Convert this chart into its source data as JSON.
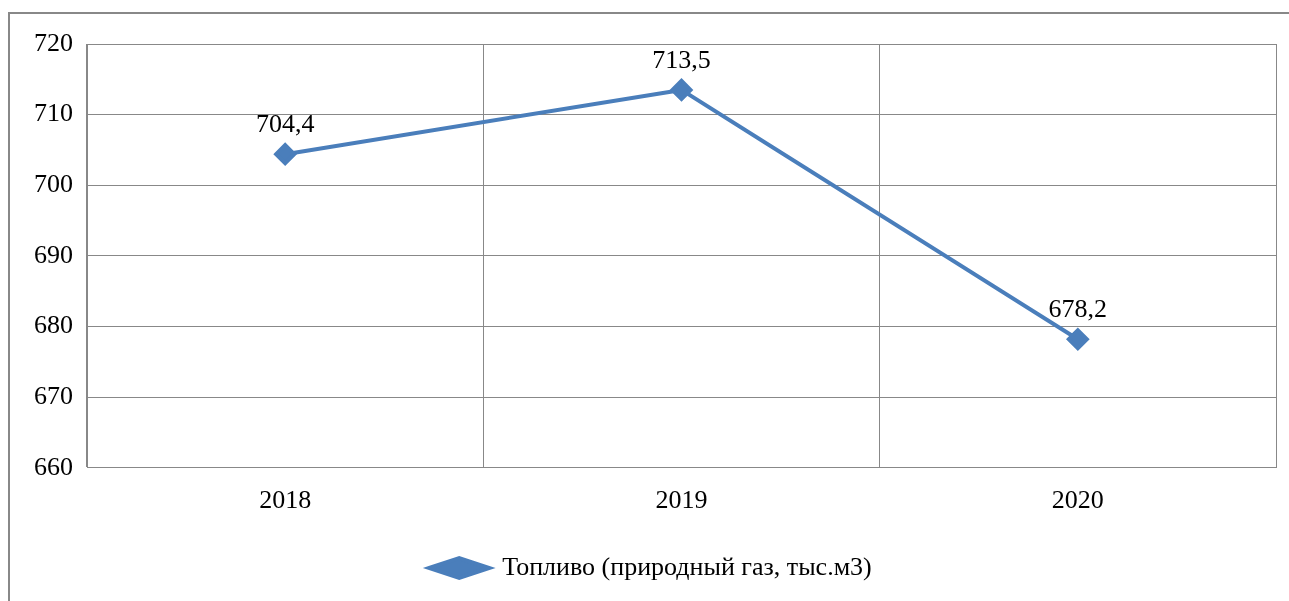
{
  "chart_data": {
    "type": "line",
    "categories": [
      "2018",
      "2019",
      "2020"
    ],
    "series": [
      {
        "name": "Топливо (природный газ, тыс.м3)",
        "color": "#4a7ebb",
        "values": [
          704.4,
          713.5,
          678.2
        ],
        "value_labels": [
          "704,4",
          "713,5",
          "678,2"
        ]
      }
    ],
    "ylim": [
      660,
      720
    ],
    "yticks": [
      660,
      670,
      680,
      690,
      700,
      710,
      720
    ],
    "grid": true,
    "legend": "bottom",
    "marker": "diamond",
    "line_style": "solid"
  }
}
